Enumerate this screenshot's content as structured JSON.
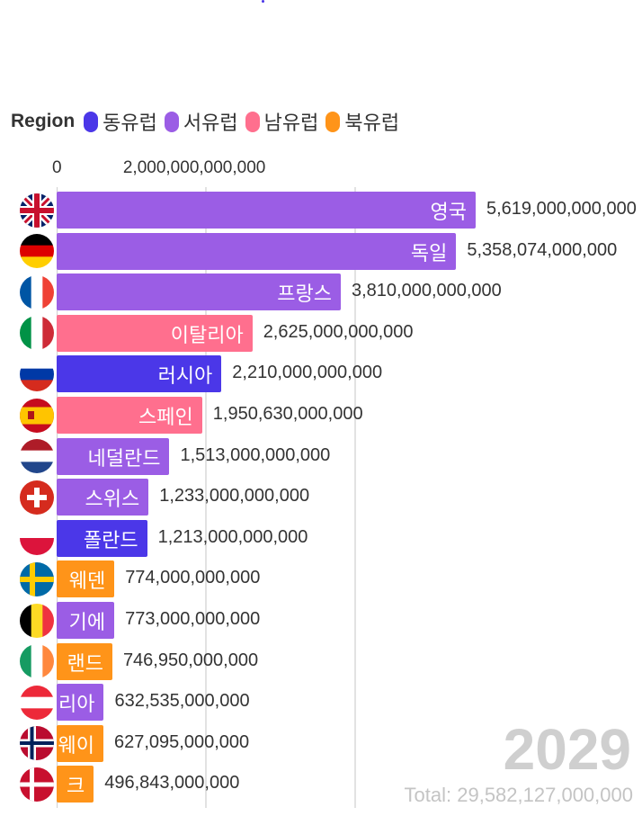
{
  "legend": {
    "title": "Region",
    "items": [
      {
        "label": "동유럽",
        "color": "#4b37e8"
      },
      {
        "label": "서유럽",
        "color": "#9b5de5"
      },
      {
        "label": "남유럽",
        "color": "#ff6f8e"
      },
      {
        "label": "북유럽",
        "color": "#ff9419"
      }
    ]
  },
  "year": "2029",
  "total": "Total: 29,582,127,000,000",
  "chart_data": {
    "type": "bar",
    "orientation": "horizontal",
    "title": "",
    "x_ticks": [
      "0",
      "2,000,000,000,000"
    ],
    "xlim": [
      0,
      5619000000000
    ],
    "series_by": "region",
    "bars": [
      {
        "name": "영국",
        "value": 5619000000000,
        "label": "5,619,000,000,000",
        "region": "서유럽",
        "flag": "uk"
      },
      {
        "name": "독일",
        "value": 5358074000000,
        "label": "5,358,074,000,000",
        "region": "서유럽",
        "flag": "germany"
      },
      {
        "name": "프랑스",
        "value": 3810000000000,
        "label": "3,810,000,000,000",
        "region": "서유럽",
        "flag": "france"
      },
      {
        "name": "이탈리아",
        "value": 2625000000000,
        "label": "2,625,000,000,000",
        "region": "남유럽",
        "flag": "italy"
      },
      {
        "name": "러시아",
        "value": 2210000000000,
        "label": "2,210,000,000,000",
        "region": "동유럽",
        "flag": "russia"
      },
      {
        "name": "스페인",
        "value": 1950630000000,
        "label": "1,950,630,000,000",
        "region": "남유럽",
        "flag": "spain"
      },
      {
        "name": "네덜란드",
        "value": 1513000000000,
        "label": "1,513,000,000,000",
        "region": "서유럽",
        "flag": "netherlands"
      },
      {
        "name": "스위스",
        "value": 1233000000000,
        "label": "1,233,000,000,000",
        "region": "서유럽",
        "flag": "switzerland"
      },
      {
        "name": "폴란드",
        "value": 1213000000000,
        "label": "1,213,000,000,000",
        "region": "동유럽",
        "flag": "poland"
      },
      {
        "name": "웨덴",
        "value": 774000000000,
        "label": "774,000,000,000",
        "region": "북유럽",
        "flag": "sweden"
      },
      {
        "name": "기에",
        "value": 773000000000,
        "label": "773,000,000,000",
        "region": "서유럽",
        "flag": "belgium"
      },
      {
        "name": "랜드",
        "value": 746950000000,
        "label": "746,950,000,000",
        "region": "북유럽",
        "flag": "ireland"
      },
      {
        "name": "리아",
        "value": 632535000000,
        "label": "632,535,000,000",
        "region": "서유럽",
        "flag": "austria"
      },
      {
        "name": "웨이",
        "value": 627095000000,
        "label": "627,095,000,000",
        "region": "북유럽",
        "flag": "norway"
      },
      {
        "name": "크",
        "value": 496843000000,
        "label": "496,843,000,000",
        "region": "북유럽",
        "flag": "denmark"
      }
    ]
  }
}
